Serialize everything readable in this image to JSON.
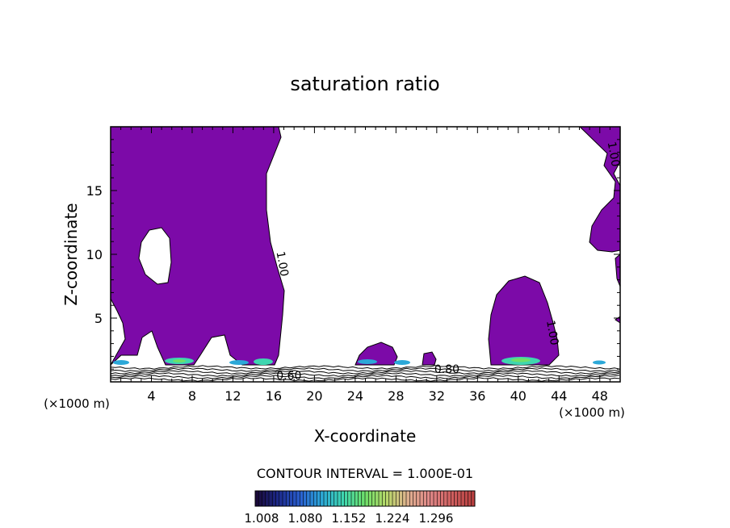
{
  "chart_data": {
    "type": "contour",
    "title": "saturation ratio",
    "xlabel": "X-coordinate",
    "ylabel": "Z-coordinate",
    "x_unit": "(×1000 m)",
    "y_unit": "(×1000 m)",
    "xlim": [
      0,
      50
    ],
    "ylim": [
      0,
      20
    ],
    "x_ticks": [
      4,
      8,
      12,
      16,
      20,
      24,
      28,
      32,
      36,
      40,
      44,
      48
    ],
    "y_ticks": [
      5,
      10,
      15
    ],
    "fill_threshold": 1.0,
    "contour_labels": [
      {
        "text": "1.00",
        "x": 16.5,
        "y": 9.2
      },
      {
        "text": "1.00",
        "x": 49.0,
        "y": 17.8
      },
      {
        "text": "1.00",
        "x": 43.0,
        "y": 3.8
      },
      {
        "text": "0.60",
        "x": 17.5,
        "y": 0.2
      },
      {
        "text": "0.80",
        "x": 33.0,
        "y": 0.7
      }
    ],
    "supersaturated_regions": [
      {
        "x": [
          0,
          17
        ],
        "z": [
          1.3,
          20
        ]
      },
      {
        "x": [
          24,
          29
        ],
        "z": [
          1.3,
          2.8
        ]
      },
      {
        "x": [
          30.5,
          32
        ],
        "z": [
          1.3,
          2.3
        ]
      },
      {
        "x": [
          37.5,
          44
        ],
        "z": [
          1.3,
          8.2
        ]
      },
      {
        "x": [
          46,
          50
        ],
        "z": [
          9.5,
          19.8
        ]
      }
    ],
    "contour_interval_text": "CONTOUR INTERVAL = 1.000E-01",
    "colorbar": {
      "colors": [
        "#1a0a3a",
        "#1c2a8c",
        "#2a5fd0",
        "#2ca8d8",
        "#3fd6b0",
        "#6ee06a",
        "#b8d86a",
        "#e0b090",
        "#e08888",
        "#d06060",
        "#b84040"
      ],
      "tick_labels": [
        "1.008",
        "1.080",
        "1.152",
        "1.224",
        "1.296"
      ]
    },
    "fill_color": "#7c0aa8"
  }
}
